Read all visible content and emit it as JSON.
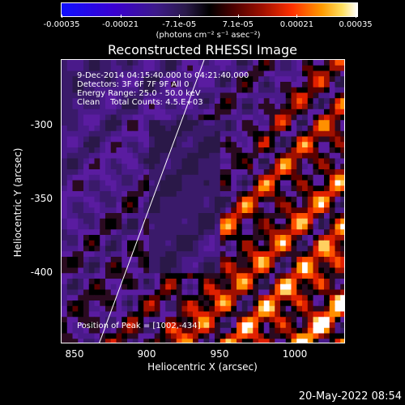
{
  "colorbar": {
    "tick_labels": [
      "-0.00035",
      "-0.00021",
      "-7.1e-05",
      "7.1e-05",
      "0.00021",
      "0.00035"
    ],
    "unit_label": "(photons cm⁻² s⁻¹ asec⁻²)"
  },
  "title": "Reconstructed RHESSI Image",
  "info": {
    "time": "9-Dec-2014 04:15:40.000 to 04:21:40.000",
    "detectors": "Detectors: 3F 6F 7F 9F All 0",
    "energy": "Energy Range: 25.0 - 50.0 keV",
    "clean": "Clean    Total Counts: 4.5.E+03",
    "peak": "Position of Peak = [1002,-434]"
  },
  "axes": {
    "xlabel": "Heliocentric X (arcsec)",
    "ylabel": "Heliocentric Y (arcsec)",
    "xticks": [
      "850",
      "900",
      "950",
      "1000"
    ],
    "yticks": [
      "-300",
      "-350",
      "-400"
    ]
  },
  "timestamp": "20-May-2022 08:54",
  "colors": {
    "background": "#000000",
    "limb_line": "#ffffff"
  }
}
